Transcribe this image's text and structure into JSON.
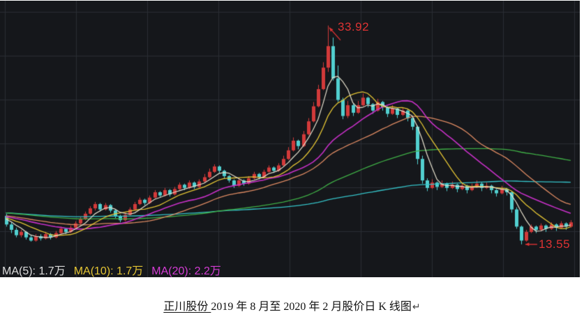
{
  "chart": {
    "annotations": {
      "peak_label": "33.92",
      "low_label": "13.55",
      "annotation_color": "#dd3333"
    },
    "legend": {
      "ma5": "MA(5): 1.7万",
      "ma10": "MA(10): 1.7万",
      "ma20": "MA(20): 2.2万"
    },
    "colors": {
      "background": "#15171b",
      "grid": "#2a2d34",
      "up_candle": "#d23a3a",
      "down_candle": "#52d0d0",
      "ma5": "#e6e0cd",
      "ma10": "#e3c434",
      "ma20": "#c630c6",
      "ma30": "#dd8a62",
      "ma60": "#3fae46",
      "ma120": "#35c3c9"
    }
  },
  "caption": {
    "stock_name": "正川股份 ",
    "text": "2019 年 8 月至 2020 年 2 月股价日 K 线图",
    "return_mark": "↵"
  },
  "chart_data": {
    "type": "candlestick",
    "title": "正川股份 2019年8月至2020年2月股价日K线图",
    "period": "2019-08 to 2020-02",
    "peak_price": 33.92,
    "low_price": 13.55,
    "peak_candle_index": 65,
    "low_candle_index": 104,
    "ylim": [
      12.5,
      35
    ],
    "grid": true,
    "legend_position": "bottom-left",
    "moving_average_windows": [
      5,
      10,
      20,
      30,
      60,
      120
    ],
    "ma_seed_left_edge": {
      "from": 17.0,
      "to": 16.0,
      "days": 60
    },
    "candles_ohlc": [
      [
        16.2,
        16.4,
        15.2,
        15.4
      ],
      [
        15.4,
        15.6,
        14.6,
        14.9
      ],
      [
        14.9,
        15.1,
        14.2,
        14.4
      ],
      [
        14.4,
        14.9,
        14.2,
        14.7
      ],
      [
        14.7,
        14.8,
        14.0,
        14.2
      ],
      [
        14.2,
        14.4,
        13.8,
        13.9
      ],
      [
        13.9,
        14.5,
        13.8,
        14.3
      ],
      [
        14.3,
        14.5,
        13.9,
        14.1
      ],
      [
        14.1,
        14.7,
        14.0,
        14.5
      ],
      [
        14.5,
        14.6,
        14.0,
        14.2
      ],
      [
        14.2,
        14.8,
        14.1,
        14.6
      ],
      [
        14.6,
        15.2,
        14.5,
        15.0
      ],
      [
        15.0,
        15.1,
        14.5,
        14.7
      ],
      [
        14.7,
        15.3,
        14.6,
        15.1
      ],
      [
        15.1,
        15.7,
        15.0,
        15.5
      ],
      [
        15.5,
        16.1,
        15.4,
        15.9
      ],
      [
        15.9,
        16.6,
        15.8,
        16.4
      ],
      [
        16.4,
        17.1,
        16.3,
        16.9
      ],
      [
        16.9,
        17.5,
        16.7,
        17.3
      ],
      [
        17.3,
        17.4,
        16.6,
        16.8
      ],
      [
        16.8,
        17.4,
        16.7,
        17.2
      ],
      [
        17.2,
        17.3,
        16.5,
        16.7
      ],
      [
        16.7,
        16.8,
        16.0,
        16.2
      ],
      [
        16.2,
        16.3,
        15.6,
        15.8
      ],
      [
        15.8,
        16.5,
        15.7,
        16.3
      ],
      [
        16.3,
        17.0,
        16.2,
        16.8
      ],
      [
        16.8,
        17.5,
        16.7,
        17.3
      ],
      [
        17.3,
        17.9,
        17.2,
        17.7
      ],
      [
        17.7,
        17.8,
        17.2,
        17.4
      ],
      [
        17.4,
        18.1,
        17.3,
        17.9
      ],
      [
        17.9,
        18.6,
        17.8,
        18.4
      ],
      [
        18.4,
        18.5,
        17.9,
        18.1
      ],
      [
        18.1,
        18.8,
        18.0,
        18.6
      ],
      [
        18.6,
        18.7,
        18.0,
        18.2
      ],
      [
        18.2,
        18.9,
        18.1,
        18.7
      ],
      [
        18.7,
        19.3,
        18.6,
        19.1
      ],
      [
        19.1,
        19.2,
        18.6,
        18.8
      ],
      [
        18.8,
        19.5,
        18.7,
        19.3
      ],
      [
        19.3,
        19.4,
        18.7,
        18.9
      ],
      [
        18.9,
        19.6,
        18.8,
        19.4
      ],
      [
        19.4,
        20.1,
        19.3,
        19.8
      ],
      [
        19.8,
        20.6,
        19.7,
        20.3
      ],
      [
        20.3,
        21.0,
        20.2,
        20.8
      ],
      [
        20.8,
        20.9,
        20.2,
        20.4
      ],
      [
        20.4,
        20.5,
        19.7,
        19.9
      ],
      [
        19.9,
        20.0,
        19.3,
        19.5
      ],
      [
        19.5,
        19.6,
        18.8,
        19.0
      ],
      [
        19.0,
        19.7,
        18.9,
        19.5
      ],
      [
        19.5,
        19.6,
        19.0,
        19.2
      ],
      [
        19.2,
        19.9,
        19.1,
        19.7
      ],
      [
        19.7,
        20.3,
        19.6,
        20.1
      ],
      [
        20.1,
        20.2,
        19.6,
        19.8
      ],
      [
        19.8,
        20.5,
        19.7,
        20.3
      ],
      [
        20.3,
        20.9,
        20.2,
        20.7
      ],
      [
        20.7,
        20.8,
        20.2,
        20.4
      ],
      [
        20.4,
        21.1,
        20.3,
        20.9
      ],
      [
        20.9,
        21.8,
        20.8,
        21.5
      ],
      [
        21.5,
        22.6,
        21.4,
        22.3
      ],
      [
        22.3,
        23.5,
        22.2,
        23.2
      ],
      [
        23.2,
        23.3,
        22.4,
        22.7
      ],
      [
        22.7,
        24.1,
        22.6,
        23.8
      ],
      [
        23.8,
        25.3,
        23.7,
        25.0
      ],
      [
        25.0,
        26.8,
        24.9,
        26.4
      ],
      [
        26.4,
        28.4,
        26.3,
        28.0
      ],
      [
        28.0,
        30.5,
        27.9,
        30.0
      ],
      [
        30.0,
        33.92,
        29.6,
        32.0
      ],
      [
        32.0,
        32.8,
        28.8,
        29.0
      ],
      [
        29.0,
        30.2,
        26.8,
        27.0
      ],
      [
        27.0,
        27.2,
        25.2,
        25.5
      ],
      [
        25.5,
        26.9,
        25.3,
        26.5
      ],
      [
        26.5,
        26.7,
        25.5,
        25.8
      ],
      [
        25.8,
        26.9,
        25.7,
        26.5
      ],
      [
        26.5,
        27.6,
        26.4,
        27.2
      ],
      [
        27.2,
        27.3,
        26.3,
        26.6
      ],
      [
        26.6,
        26.7,
        25.7,
        26.0
      ],
      [
        26.0,
        27.1,
        25.9,
        26.8
      ],
      [
        26.8,
        26.9,
        26.0,
        26.3
      ],
      [
        26.3,
        26.4,
        25.4,
        25.7
      ],
      [
        25.7,
        26.5,
        25.6,
        26.2
      ],
      [
        26.2,
        26.3,
        25.3,
        25.6
      ],
      [
        25.6,
        26.3,
        25.5,
        26.0
      ],
      [
        26.0,
        26.1,
        25.0,
        25.3
      ],
      [
        25.3,
        25.4,
        24.2,
        24.5
      ],
      [
        24.5,
        24.6,
        21.0,
        21.5
      ],
      [
        21.5,
        21.8,
        19.2,
        19.5
      ],
      [
        19.5,
        19.7,
        18.5,
        18.8
      ],
      [
        18.8,
        19.6,
        18.7,
        19.3
      ],
      [
        19.3,
        19.4,
        18.6,
        18.9
      ],
      [
        18.9,
        19.5,
        18.8,
        19.2
      ],
      [
        19.2,
        19.3,
        18.5,
        18.8
      ],
      [
        18.8,
        19.4,
        18.7,
        19.1
      ],
      [
        19.1,
        19.2,
        18.4,
        18.7
      ],
      [
        18.7,
        19.3,
        18.6,
        19.0
      ],
      [
        19.0,
        19.1,
        18.3,
        18.6
      ],
      [
        18.6,
        19.2,
        18.5,
        18.9
      ],
      [
        18.9,
        19.5,
        18.8,
        19.2
      ],
      [
        19.2,
        19.3,
        18.5,
        18.8
      ],
      [
        18.8,
        19.3,
        18.7,
        19.0
      ],
      [
        19.0,
        19.1,
        18.3,
        18.6
      ],
      [
        18.6,
        18.7,
        18.0,
        18.3
      ],
      [
        18.3,
        19.0,
        18.2,
        18.7
      ],
      [
        18.7,
        18.8,
        18.1,
        18.4
      ],
      [
        18.4,
        18.5,
        16.5,
        16.8
      ],
      [
        16.8,
        17.0,
        15.0,
        15.2
      ],
      [
        15.2,
        15.3,
        13.55,
        13.9
      ],
      [
        13.9,
        14.9,
        13.8,
        14.7
      ],
      [
        14.7,
        15.4,
        14.6,
        15.2
      ],
      [
        15.2,
        15.3,
        14.6,
        14.9
      ],
      [
        14.9,
        15.5,
        14.8,
        15.3
      ],
      [
        15.3,
        15.4,
        14.7,
        15.0
      ],
      [
        15.0,
        15.6,
        14.9,
        15.4
      ],
      [
        15.4,
        15.5,
        14.8,
        15.1
      ],
      [
        15.1,
        15.7,
        15.0,
        15.5
      ],
      [
        15.5,
        15.6,
        14.9,
        15.2
      ],
      [
        15.2,
        15.8,
        15.1,
        15.6
      ]
    ]
  }
}
